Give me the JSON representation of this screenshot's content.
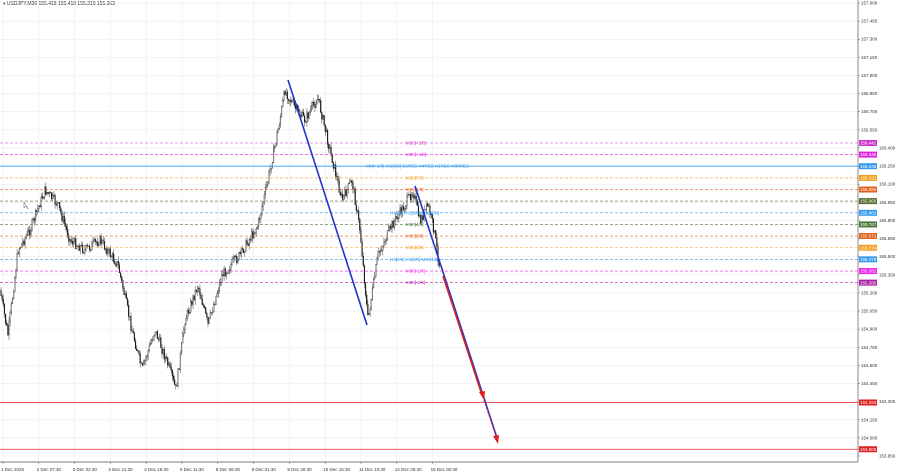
{
  "header": {
    "title": "USDJPY,M30  155.418 155.418 155.319 155.363",
    "menu_icon": "triangle-down-icon"
  },
  "chart_data": {
    "type": "candlestick",
    "symbol": "USDJPY",
    "timeframe": "M30",
    "ylim": [
      153.85,
      157.6
    ],
    "y_ticks": [
      "157.600",
      "157.450",
      "157.300",
      "157.150",
      "157.000",
      "156.850",
      "156.700",
      "156.550",
      "156.400",
      "156.250",
      "156.100",
      "155.950",
      "155.800",
      "155.650",
      "155.500",
      "155.350",
      "155.200",
      "155.050",
      "154.900",
      "154.750",
      "154.600",
      "154.450",
      "154.300",
      "154.150",
      "154.000",
      "153.850"
    ],
    "x_ticks": [
      "1 Dec 2025",
      "2 Dec 07:30",
      "3 Dec 02:30",
      "3 Dec 21:30",
      "4 Dec 16:30",
      "5 Dec 11:30",
      "8 Dec 06:30",
      "9 Dec 01:30",
      "9 Dec 20:30",
      "10 Dec 15:30",
      "11 Dec 10:30",
      "12 Dec 05:30",
      "15 Dec 00:30"
    ],
    "grid": true,
    "levels": [
      {
        "label": "M30[+2/8]",
        "price": 156.441,
        "color": "#cc33cc",
        "tag": "156.441"
      },
      {
        "label": "M30[+1/8]",
        "price": 156.345,
        "color": "#dd22dd",
        "tag": "156.345"
      },
      {
        "label": "MN[+1/8] W1[8/8] D1RES H4RES H1RES M30RES",
        "price": 156.249,
        "color": "#3399ee",
        "tag": "156.249",
        "solid": true
      },
      {
        "label": "M30[7/8]",
        "price": 156.152,
        "color": "#f0a020",
        "tag": "156.152"
      },
      {
        "label": "M30[6/8]",
        "price": 156.056,
        "color": "#e06020",
        "tag": "156.056"
      },
      {
        "label": "",
        "price": 155.96,
        "color": "#556b2f",
        "tag": "155.960"
      },
      {
        "label": "H4[6/8] H1[6/8] M30[5/8]",
        "price": 155.863,
        "color": "#3399ee",
        "tag": "155.863"
      },
      {
        "label": "M30[4/8]",
        "price": 155.767,
        "color": "#4a7a3a",
        "tag": "155.767"
      },
      {
        "label": "M30[3/8]",
        "price": 155.671,
        "color": "#e06020",
        "tag": "155.671"
      },
      {
        "label": "M30[2/8]",
        "price": 155.574,
        "color": "#f0a020",
        "tag": "155.574"
      },
      {
        "label": "H4[0/8] H1[0/8] M30[1/8]",
        "price": 155.478,
        "color": "#3399ee",
        "tag": "155.478"
      },
      {
        "label": "M30[-1/8]",
        "price": 155.381,
        "color": "#ee22ee",
        "tag": "155.381"
      },
      {
        "label": "M30[-2/8]",
        "price": 155.285,
        "color": "#aa22aa",
        "tag": "155.285"
      },
      {
        "label": "",
        "price": 154.293,
        "color": "#e02020",
        "tag": "154.293",
        "solid": true
      },
      {
        "label": "",
        "price": 153.906,
        "color": "#e02020",
        "tag": "153.906",
        "solid": true
      }
    ],
    "colors": {
      "candles": "#000000",
      "trend_lines": "#2233cc",
      "forecast": "#e02020",
      "grid": "#e8e8ee"
    }
  }
}
